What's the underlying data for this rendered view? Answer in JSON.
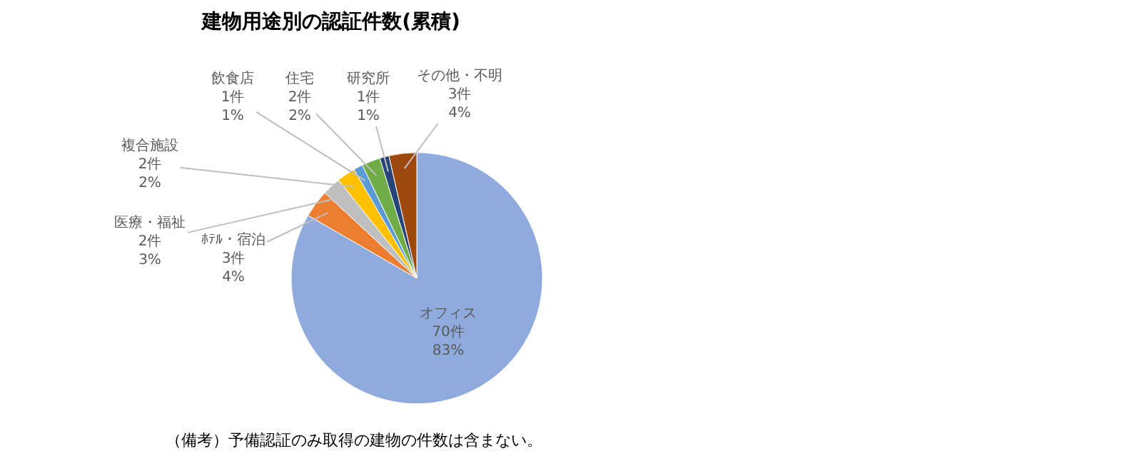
{
  "chart_data": {
    "type": "pie",
    "title": "建物用途別の認証件数(累積)",
    "categories": [
      "オフィス",
      "ﾎﾃﾙ・宿泊",
      "医療・福祉",
      "複合施設",
      "飲食店",
      "住宅",
      "研究所",
      "その他・不明"
    ],
    "values": [
      70,
      3,
      2,
      2,
      1,
      2,
      1,
      3
    ],
    "colors": [
      "#8faadc",
      "#ed7d31",
      "#bfbfbf",
      "#ffc000",
      "#5b9bd5",
      "#70ad47",
      "#264478",
      "#9e480e"
    ],
    "value_labels": [
      "70件\n83%",
      "3件\n4%",
      "2件\n3%",
      "2件\n2%",
      "1件\n1%",
      "2件\n2%",
      "1件\n1%",
      "3件\n4%"
    ],
    "annotations": [
      "（備考）予備認証のみ取得の建物の件数は含まない。"
    ],
    "legend": false
  }
}
